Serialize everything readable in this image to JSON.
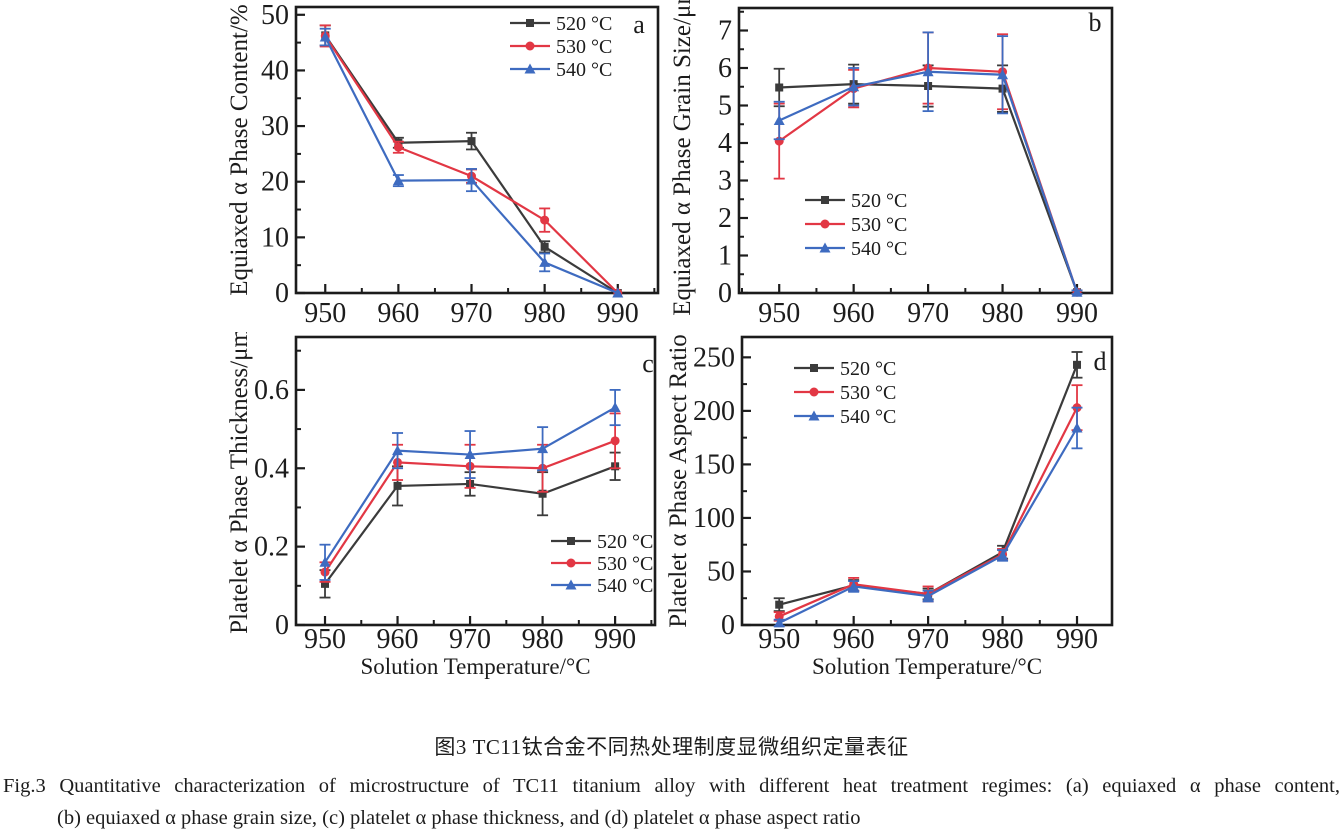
{
  "figure": {
    "caption_cn": "图3  TC11钛合金不同热处理制度显微组织定量表征",
    "caption_en_line1": "Fig.3 Quantitative characterization of microstructure of TC11 titanium alloy with different heat treatment regimes: (a) equiaxed α phase content,",
    "caption_en_line2": "(b) equiaxed α phase grain size, (c) platelet α phase thickness, and (d) platelet α phase aspect ratio"
  },
  "colors": {
    "s520": "#3b3b3b",
    "s530": "#e23744",
    "s540": "#3e6bc0",
    "axis": "#1c1c1c",
    "text": "#1c1c1c",
    "background": "#ffffff"
  },
  "chart_data": [
    {
      "id": "a",
      "type": "line",
      "panel_label": "a",
      "ylabel": "Equiaxed α Phase Content/%",
      "xlabel": "",
      "x": [
        950,
        960,
        970,
        980,
        990
      ],
      "x_tick_labels": [
        "950",
        "960",
        "970",
        "980",
        "990"
      ],
      "xlim": [
        946,
        995.5
      ],
      "ylim": [
        0,
        51.4
      ],
      "y_ticks": [
        {
          "v": 0,
          "label": "0"
        },
        {
          "v": 10,
          "label": "10"
        },
        {
          "v": 20,
          "label": "20"
        },
        {
          "v": 30,
          "label": "30"
        },
        {
          "v": 40,
          "label": "40"
        },
        {
          "v": 50,
          "label": "50"
        }
      ],
      "y_minor_step": 5,
      "x_minor_step": 5,
      "grid": false,
      "legend_position": "top-right",
      "series": [
        {
          "name": "520 °C",
          "color": "s520",
          "marker": "square",
          "values": [
            46.3,
            27.0,
            27.3,
            8.3,
            0
          ],
          "errors": [
            1.8,
            0.9,
            1.5,
            1.0,
            0
          ]
        },
        {
          "name": "530 °C",
          "color": "s530",
          "marker": "circle",
          "values": [
            46.2,
            26.2,
            21.0,
            13.1,
            0
          ],
          "errors": [
            1.9,
            1.0,
            1.2,
            2.1,
            0
          ]
        },
        {
          "name": "540 °C",
          "color": "s540",
          "marker": "triangle",
          "values": [
            46.0,
            20.2,
            20.3,
            5.5,
            0
          ],
          "errors": [
            1.5,
            1.0,
            2.0,
            1.6,
            0
          ]
        }
      ]
    },
    {
      "id": "b",
      "type": "line",
      "panel_label": "b",
      "ylabel": "Equiaxed α Phase Grain Size/μm",
      "xlabel": "",
      "x": [
        950,
        960,
        970,
        980,
        990
      ],
      "x_tick_labels": [
        "950",
        "960",
        "970",
        "980",
        "990"
      ],
      "xlim": [
        944.6,
        994.7
      ],
      "ylim": [
        0,
        7.6
      ],
      "y_ticks": [
        {
          "v": 0,
          "label": "0"
        },
        {
          "v": 1,
          "label": "1"
        },
        {
          "v": 2,
          "label": "2"
        },
        {
          "v": 3,
          "label": "3"
        },
        {
          "v": 4,
          "label": "4"
        },
        {
          "v": 5,
          "label": "5"
        },
        {
          "v": 6,
          "label": "6"
        },
        {
          "v": 7,
          "label": "7"
        }
      ],
      "y_minor_step": 0.5,
      "x_minor_step": 5,
      "grid": false,
      "legend_position": "middle-left",
      "series": [
        {
          "name": "520 °C",
          "color": "s520",
          "marker": "square",
          "values": [
            5.48,
            5.57,
            5.52,
            5.45,
            0.02
          ],
          "errors": [
            0.5,
            0.52,
            0.55,
            0.62,
            0.05
          ]
        },
        {
          "name": "530 °C",
          "color": "s530",
          "marker": "circle",
          "values": [
            4.05,
            5.45,
            6.0,
            5.9,
            0.02
          ],
          "errors": [
            1.0,
            0.5,
            0.95,
            1.0,
            0.05
          ]
        },
        {
          "name": "540 °C",
          "color": "s540",
          "marker": "triangle",
          "values": [
            4.6,
            5.5,
            5.9,
            5.82,
            0.02
          ],
          "errors": [
            0.5,
            0.5,
            1.05,
            1.03,
            0.05
          ]
        }
      ]
    },
    {
      "id": "c",
      "type": "line",
      "panel_label": "c",
      "ylabel": "Platelet α Phase Thickness/μm",
      "xlabel": "Solution Temperature/°C",
      "x": [
        950,
        960,
        970,
        980,
        990
      ],
      "x_tick_labels": [
        "950",
        "960",
        "970",
        "980",
        "990"
      ],
      "xlim": [
        946,
        995.5
      ],
      "ylim": [
        0,
        0.735
      ],
      "y_ticks": [
        {
          "v": 0,
          "label": "0"
        },
        {
          "v": 0.2,
          "label": "0.2"
        },
        {
          "v": 0.4,
          "label": "0.4"
        },
        {
          "v": 0.6,
          "label": "0.6"
        }
      ],
      "y_minor_step": 0.1,
      "x_minor_step": 5,
      "grid": false,
      "legend_position": "bottom-right",
      "series": [
        {
          "name": "520 °C",
          "color": "s520",
          "marker": "square",
          "values": [
            0.105,
            0.355,
            0.36,
            0.335,
            0.405
          ],
          "errors": [
            0.035,
            0.05,
            0.03,
            0.055,
            0.035
          ]
        },
        {
          "name": "530 °C",
          "color": "s530",
          "marker": "circle",
          "values": [
            0.135,
            0.415,
            0.405,
            0.4,
            0.47
          ],
          "errors": [
            0.025,
            0.045,
            0.055,
            0.06,
            0.07
          ]
        },
        {
          "name": "540 °C",
          "color": "s540",
          "marker": "triangle",
          "values": [
            0.16,
            0.445,
            0.435,
            0.45,
            0.555
          ],
          "errors": [
            0.045,
            0.045,
            0.06,
            0.055,
            0.045
          ]
        }
      ]
    },
    {
      "id": "d",
      "type": "line",
      "panel_label": "d",
      "ylabel": "Platelet α Phase Aspect Ratio",
      "xlabel": "Solution Temperature/°C",
      "x": [
        950,
        960,
        970,
        980,
        990
      ],
      "x_tick_labels": [
        "950",
        "960",
        "970",
        "980",
        "990"
      ],
      "xlim": [
        945,
        994.7
      ],
      "ylim": [
        0,
        269
      ],
      "y_ticks": [
        {
          "v": 0,
          "label": "0"
        },
        {
          "v": 50,
          "label": "50"
        },
        {
          "v": 100,
          "label": "100"
        },
        {
          "v": 150,
          "label": "150"
        },
        {
          "v": 200,
          "label": "200"
        },
        {
          "v": 250,
          "label": "250"
        }
      ],
      "y_minor_step": 25,
      "x_minor_step": 5,
      "grid": false,
      "legend_position": "top-left",
      "series": [
        {
          "name": "520 °C",
          "color": "s520",
          "marker": "square",
          "values": [
            19,
            37,
            29,
            68,
            243
          ],
          "errors": [
            6,
            5,
            5,
            6,
            12
          ]
        },
        {
          "name": "530 °C",
          "color": "s530",
          "marker": "circle",
          "values": [
            8,
            38,
            29,
            66,
            203
          ],
          "errors": [
            4,
            6,
            7,
            5,
            21
          ]
        },
        {
          "name": "540 °C",
          "color": "s540",
          "marker": "triangle",
          "values": [
            2,
            36,
            27,
            65,
            184
          ],
          "errors": [
            3,
            5,
            5,
            5,
            19
          ]
        }
      ]
    }
  ]
}
